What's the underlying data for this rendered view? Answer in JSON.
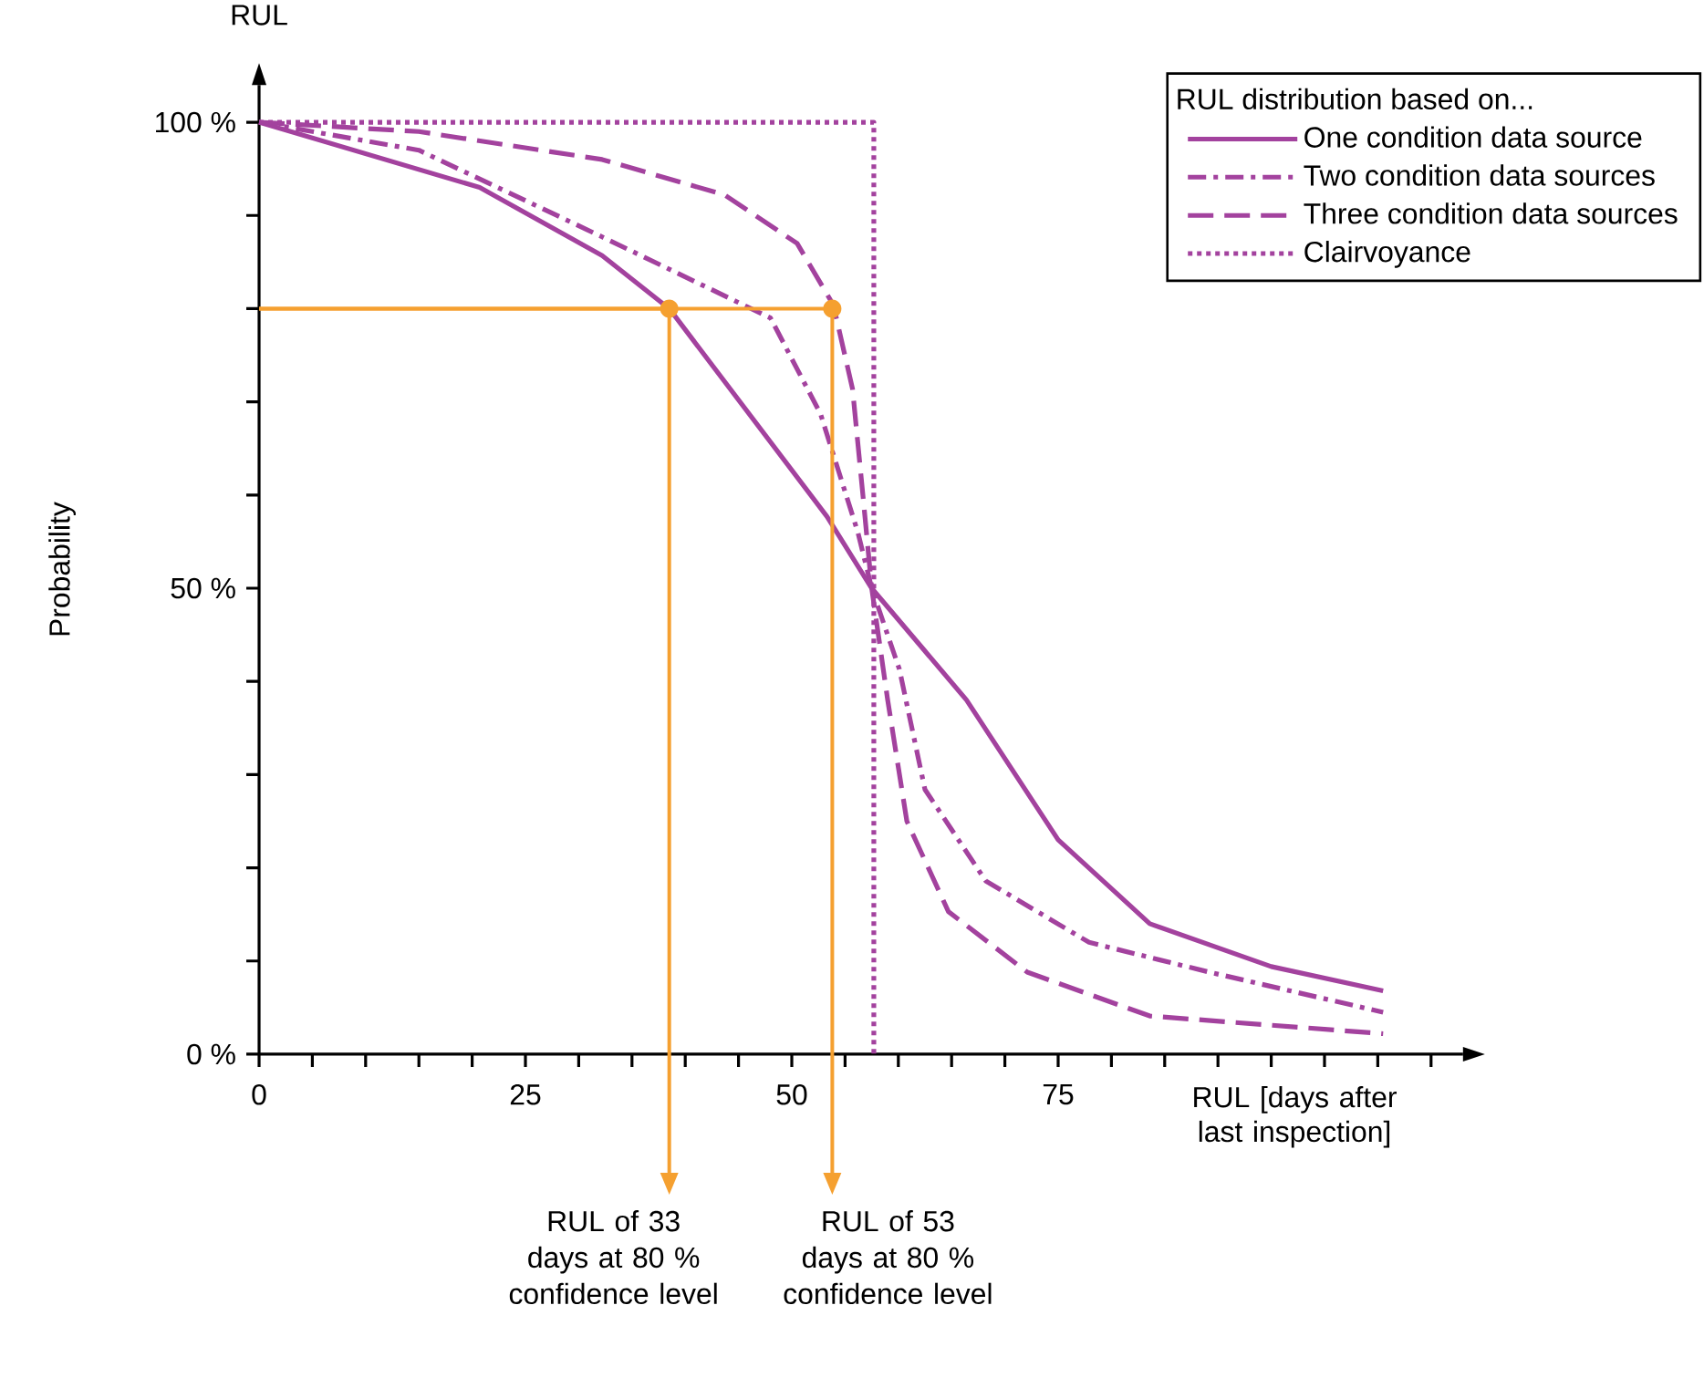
{
  "chart_data": {
    "type": "line",
    "title": "RUL",
    "xlabel": "RUL [days after last inspection]",
    "ylabel": "Probability",
    "legend_title": "RUL distribution based on...",
    "legend": "top right",
    "xlim": [
      0,
      113
    ],
    "ylim": [
      0,
      104
    ],
    "xticks": [
      0,
      {
        "value": 5,
        "label": null
      },
      {
        "value": 10,
        "label": null
      },
      {
        "value": 15,
        "label": null
      },
      {
        "value": 20,
        "label": null
      },
      25,
      {
        "value": 30,
        "label": null
      },
      {
        "value": 35,
        "label": null
      },
      {
        "value": 40,
        "label": null
      },
      {
        "value": 45,
        "label": null
      },
      50,
      {
        "value": 55,
        "label": null
      },
      {
        "value": 60,
        "label": null
      },
      {
        "value": 65,
        "label": null
      },
      {
        "value": 70,
        "label": null
      },
      75,
      {
        "value": 80,
        "label": null
      },
      {
        "value": 85,
        "label": null
      },
      {
        "value": 90,
        "label": null
      },
      {
        "value": 95,
        "label": null
      },
      {
        "value": 100,
        "label": null
      },
      {
        "value": 105,
        "label": null
      },
      {
        "value": 110,
        "label": null
      }
    ],
    "yticks": [
      {
        "value": 0,
        "label": "0 %"
      },
      {
        "value": 10,
        "label": null
      },
      {
        "value": 20,
        "label": null
      },
      {
        "value": 30,
        "label": null
      },
      {
        "value": 40,
        "label": null
      },
      {
        "value": 50,
        "label": "50 %"
      },
      {
        "value": 60,
        "label": null
      },
      {
        "value": 70,
        "label": null
      },
      {
        "value": 80,
        "label": null
      },
      {
        "value": 90,
        "label": null
      },
      {
        "value": 100,
        "label": "100 %"
      }
    ],
    "series": [
      {
        "name": "One condition data source",
        "color": "#a3429e",
        "line_style": "solid",
        "x": [
          0,
          20.7,
          32.2,
          38.5,
          53.3,
          57.5,
          66.4,
          75,
          83.6,
          95,
          105.5
        ],
        "values": [
          100,
          93,
          85.7,
          80,
          57.7,
          50,
          38,
          23,
          14,
          9.4,
          6.8
        ]
      },
      {
        "name": "Two condition data sources",
        "color": "#a3429e",
        "line_style": "dashdotted",
        "x": [
          0,
          15,
          32.2,
          48,
          52.7,
          56.2,
          57.5,
          60.1,
          62.5,
          68.2,
          77.9,
          89.2,
          105.5
        ],
        "values": [
          100,
          97,
          87.7,
          79,
          68.7,
          56,
          50,
          41.3,
          28.4,
          18.6,
          12,
          8.8,
          4.5
        ]
      },
      {
        "name": "Three condition data sources",
        "color": "#a3429e",
        "line_style": "dashed",
        "x": [
          0,
          15,
          32.2,
          43.7,
          50.5,
          53.9,
          55.7,
          56.7,
          57.5,
          59,
          60.8,
          64.7,
          72.1,
          83.6,
          105.5
        ],
        "values": [
          100,
          99,
          96,
          92.2,
          87,
          80.4,
          71.4,
          59.7,
          50,
          38,
          25,
          15.3,
          8.8,
          4.1,
          2.2
        ]
      },
      {
        "name": "Clairvoyance",
        "color": "#a3429e",
        "line_style": "dotted",
        "x": [
          0,
          57.7,
          57.7
        ],
        "values": [
          100,
          100,
          0
        ]
      }
    ],
    "annotations": [
      {
        "text": "RUL of 33 days at 80 % confidence level",
        "x": 38.5,
        "y": 80
      },
      {
        "text": "RUL of 53 days at 80 % confidence level",
        "x": 53.8,
        "y": 80
      }
    ]
  }
}
